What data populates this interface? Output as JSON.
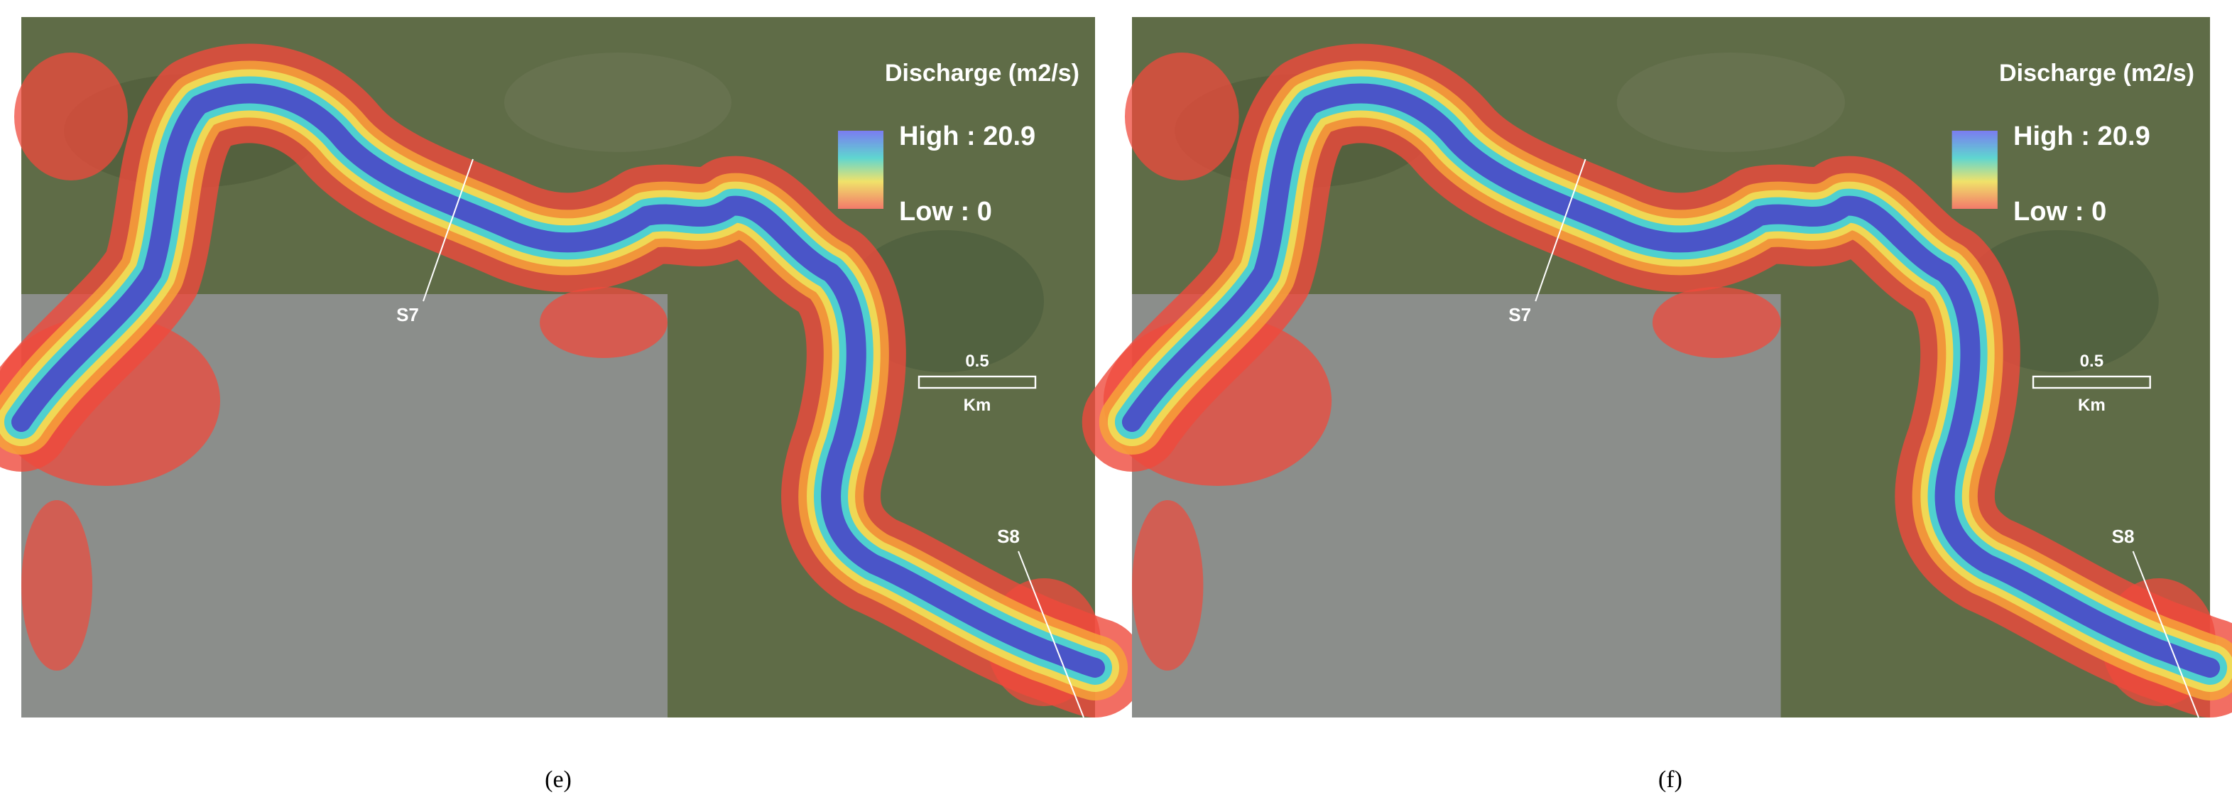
{
  "panels": [
    {
      "legend": {
        "title": "Discharge (m2/s)",
        "high": "High : 20.9",
        "low": "Low : 0"
      },
      "scale": {
        "distance": "0.5",
        "unit": "Km"
      },
      "sections": [
        "S7",
        "S8"
      ],
      "caption": "(e)"
    },
    {
      "legend": {
        "title": "Discharge (m2/s)",
        "high": "High : 20.9",
        "low": "Low : 0"
      },
      "scale": {
        "distance": "0.5",
        "unit": "Km"
      },
      "sections": [
        "S7",
        "S8"
      ],
      "caption": "(f)"
    }
  ]
}
